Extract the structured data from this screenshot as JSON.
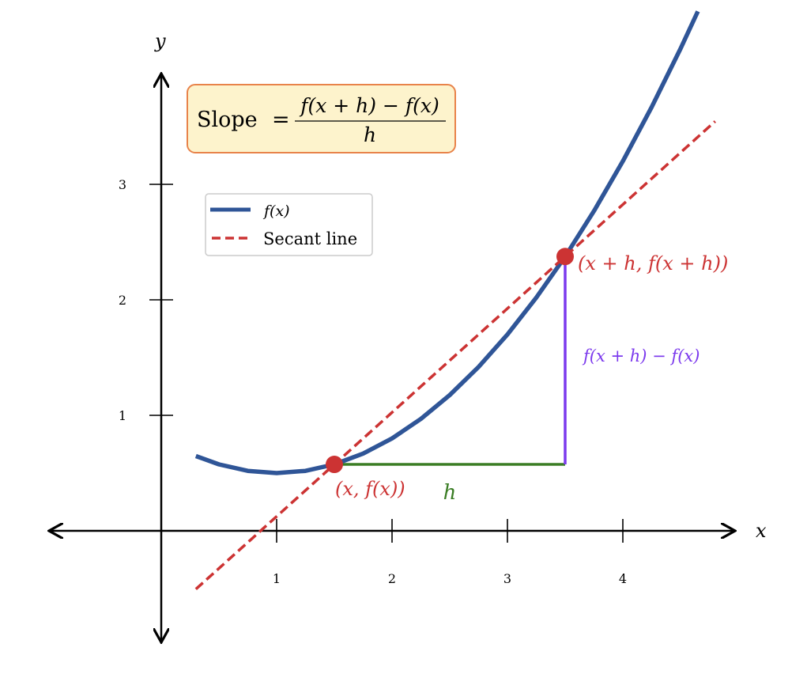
{
  "chart_data": {
    "type": "line",
    "axes": {
      "x_label": "x",
      "y_label": "y",
      "xlim": [
        -1,
        5
      ],
      "ylim": [
        -1,
        4
      ],
      "x_ticks": [
        "1",
        "2",
        "3",
        "4"
      ],
      "y_ticks": [
        "1",
        "2",
        "3"
      ],
      "grid": false
    },
    "series": [
      {
        "name": "f(x)",
        "color": "#2f5597",
        "style": "solid",
        "x": [
          0.3,
          0.5,
          0.75,
          1,
          1.25,
          1.5,
          1.75,
          2,
          2.25,
          2.5,
          2.75,
          3,
          3.25,
          3.5,
          3.75,
          4,
          4.25,
          4.5,
          4.65
        ],
        "y": [
          0.647,
          0.575,
          0.519,
          0.5,
          0.519,
          0.575,
          0.669,
          0.8,
          0.969,
          1.175,
          1.419,
          1.7,
          2.019,
          2.375,
          2.769,
          3.2,
          3.669,
          4.175,
          4.497
        ]
      },
      {
        "name": "Secant line",
        "color": "#cc3333",
        "style": "dashed",
        "x": [
          0.3,
          4.8
        ],
        "y": [
          -0.505,
          3.545
        ]
      }
    ],
    "points": [
      {
        "x": 1.5,
        "y": 0.575,
        "label": "(x,  f(x))",
        "color": "#cc3333"
      },
      {
        "x": 3.5,
        "y": 2.375,
        "label": "(x + h,  f(x + h))",
        "color": "#cc3333"
      }
    ],
    "run": {
      "label": "h",
      "color": "#3a7d24"
    },
    "rise": {
      "label": "f(x + h) − f(x)",
      "color": "#7c3aed"
    },
    "legend": {
      "placement": "upper-left",
      "entries": [
        "f(x)",
        "Secant line"
      ]
    },
    "formula": {
      "lead": "Slope",
      "equals": "=",
      "numerator": "f(x + h) − f(x)",
      "denominator": "h",
      "fill": "#fdf3cc",
      "border": "#e8834a"
    }
  }
}
